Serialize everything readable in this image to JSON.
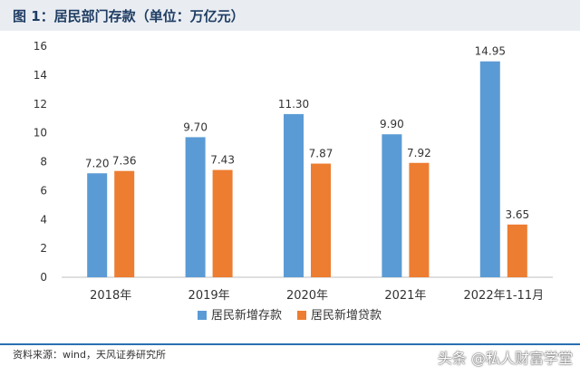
{
  "header": {
    "title": "图 1：居民部门存款（单位：万亿元）"
  },
  "footer": {
    "source": "资料来源：wind，天风证券研究所",
    "watermark": "头条 @私人财富学堂"
  },
  "chart_data": {
    "type": "bar",
    "title": "",
    "categories": [
      "2018年",
      "2019年",
      "2020年",
      "2021年",
      "2022年1-11月"
    ],
    "series": [
      {
        "name": "居民新增存款",
        "color": "#5b9bd5",
        "values": [
          7.2,
          9.7,
          11.3,
          9.9,
          14.95
        ]
      },
      {
        "name": "居民新增贷款",
        "color": "#ed7d31",
        "values": [
          7.36,
          7.43,
          7.87,
          7.92,
          3.65
        ]
      }
    ],
    "value_labels": [
      [
        "7.20",
        "9.70",
        "11.30",
        "9.90",
        "14.95"
      ],
      [
        "7.36",
        "7.43",
        "7.87",
        "7.92",
        "3.65"
      ]
    ],
    "yticks": [
      "0",
      "2",
      "4",
      "6",
      "8",
      "10",
      "12",
      "14",
      "16"
    ],
    "ylim": [
      0,
      16
    ],
    "xlabel": "",
    "ylabel": "",
    "grid": false,
    "legend": "bottom-center"
  }
}
